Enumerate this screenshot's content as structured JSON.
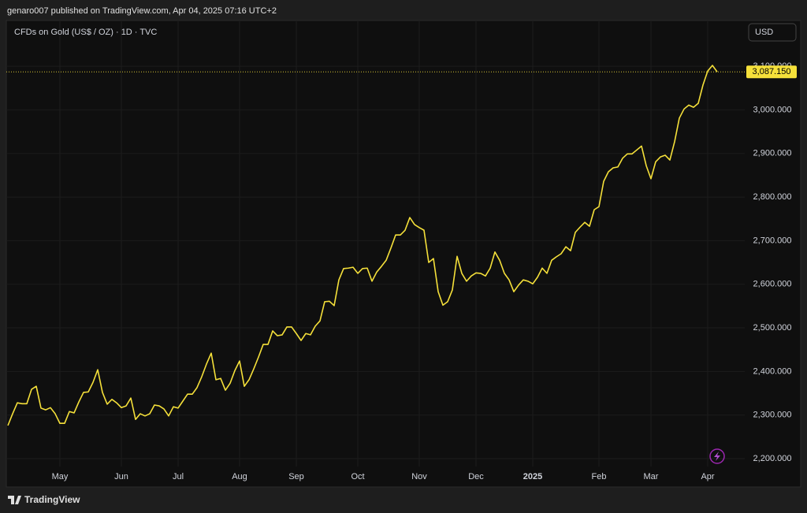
{
  "header": "genaro007 published on TradingView.com, Apr 04, 2025 07:16 UTC+2",
  "footer": "TradingView",
  "chart_data": {
    "type": "line",
    "title": "CFDs on Gold (US$ / OZ) · 1D · TVC",
    "currency": "USD",
    "color": "#f5e03a",
    "grid": true,
    "ylim": [
      2182,
      3205
    ],
    "yticks": [
      {
        "value": 2200,
        "label": "2,200.000"
      },
      {
        "value": 2300,
        "label": "2,300.000"
      },
      {
        "value": 2400,
        "label": "2,400.000"
      },
      {
        "value": 2500,
        "label": "2,500.000"
      },
      {
        "value": 2600,
        "label": "2,600.000"
      },
      {
        "value": 2700,
        "label": "2,700.000"
      },
      {
        "value": 2800,
        "label": "2,800.000"
      },
      {
        "value": 2900,
        "label": "2,900.000"
      },
      {
        "value": 3000,
        "label": "3,000.000"
      },
      {
        "value": 3100,
        "label": "3,100.000"
      }
    ],
    "last_price": {
      "value": 3087.15,
      "label": "3,087.150"
    },
    "categories": [
      null,
      null,
      null,
      null,
      null,
      null,
      null,
      null,
      null,
      null,
      null,
      "May",
      null,
      null,
      null,
      null,
      null,
      null,
      null,
      null,
      null,
      null,
      null,
      null,
      "Jun",
      null,
      null,
      null,
      null,
      null,
      null,
      null,
      null,
      null,
      null,
      null,
      "Jul",
      null,
      null,
      null,
      null,
      null,
      null,
      null,
      null,
      null,
      null,
      null,
      null,
      "Aug",
      null,
      null,
      null,
      null,
      null,
      null,
      null,
      null,
      null,
      null,
      null,
      "Sep",
      null,
      null,
      null,
      null,
      null,
      null,
      null,
      null,
      null,
      null,
      null,
      null,
      "Oct",
      null,
      null,
      null,
      null,
      null,
      null,
      null,
      null,
      null,
      null,
      null,
      null,
      "Nov",
      null,
      null,
      null,
      null,
      null,
      null,
      null,
      null,
      null,
      null,
      null,
      "Dec",
      null,
      null,
      null,
      null,
      null,
      null,
      null,
      null,
      null,
      null,
      null,
      "2025",
      null,
      null,
      null,
      null,
      null,
      null,
      null,
      null,
      null,
      null,
      null,
      null,
      null,
      "Feb",
      null,
      null,
      null,
      null,
      null,
      null,
      null,
      null,
      null,
      null,
      "Mar",
      null,
      null,
      null,
      null,
      null,
      null,
      null,
      null,
      null,
      null,
      null,
      "Apr",
      null,
      null
    ],
    "values": [
      2276,
      2303,
      2328,
      2326,
      2326,
      2359,
      2366,
      2316,
      2312,
      2317,
      2303,
      2281,
      2281,
      2308,
      2305,
      2330,
      2352,
      2353,
      2375,
      2404,
      2352,
      2325,
      2336,
      2328,
      2317,
      2321,
      2339,
      2290,
      2303,
      2298,
      2303,
      2323,
      2321,
      2314,
      2298,
      2319,
      2316,
      2332,
      2348,
      2348,
      2363,
      2388,
      2417,
      2442,
      2381,
      2384,
      2357,
      2373,
      2402,
      2424,
      2366,
      2381,
      2406,
      2433,
      2462,
      2462,
      2493,
      2482,
      2484,
      2502,
      2502,
      2487,
      2471,
      2487,
      2484,
      2504,
      2516,
      2560,
      2561,
      2551,
      2610,
      2636,
      2637,
      2639,
      2625,
      2636,
      2637,
      2607,
      2628,
      2641,
      2655,
      2683,
      2713,
      2713,
      2724,
      2753,
      2737,
      2730,
      2724,
      2650,
      2659,
      2583,
      2552,
      2560,
      2587,
      2664,
      2625,
      2607,
      2619,
      2626,
      2625,
      2619,
      2637,
      2674,
      2655,
      2625,
      2610,
      2583,
      2598,
      2610,
      2607,
      2601,
      2616,
      2637,
      2625,
      2655,
      2663,
      2670,
      2686,
      2677,
      2719,
      2731,
      2742,
      2733,
      2771,
      2778,
      2836,
      2858,
      2867,
      2869,
      2889,
      2899,
      2899,
      2908,
      2917,
      2872,
      2842,
      2881,
      2892,
      2896,
      2885,
      2927,
      2981,
      3002,
      3011,
      3006,
      3015,
      3057,
      3089,
      3102,
      3087.15
    ]
  }
}
